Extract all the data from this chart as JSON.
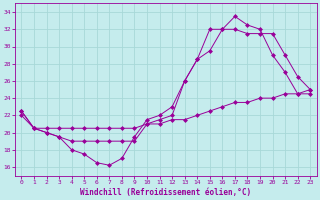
{
  "xlabel": "Windchill (Refroidissement éolien,°C)",
  "bg_color": "#c5eced",
  "line_color": "#990099",
  "grid_color": "#a8d8d8",
  "xlim": [
    -0.5,
    23.5
  ],
  "ylim": [
    15.0,
    35.0
  ],
  "yticks": [
    16,
    18,
    20,
    22,
    24,
    26,
    28,
    30,
    32,
    34
  ],
  "xticks": [
    0,
    1,
    2,
    3,
    4,
    5,
    6,
    7,
    8,
    9,
    10,
    11,
    12,
    13,
    14,
    15,
    16,
    17,
    18,
    19,
    20,
    21,
    22,
    23
  ],
  "line1_x": [
    0,
    1,
    2,
    3,
    4,
    5,
    6,
    7,
    8,
    9,
    10,
    11,
    12,
    13,
    14,
    15,
    16,
    17,
    18,
    19,
    20,
    21,
    22,
    23
  ],
  "line1_y": [
    22.5,
    20.5,
    20.0,
    19.5,
    18.0,
    17.5,
    16.5,
    16.2,
    17.0,
    19.5,
    21.5,
    22.0,
    23.0,
    26.0,
    28.5,
    29.5,
    32.0,
    33.5,
    32.5,
    32.0,
    29.0,
    27.0,
    24.5,
    24.5
  ],
  "line2_x": [
    0,
    1,
    2,
    3,
    4,
    5,
    6,
    7,
    8,
    9,
    10,
    11,
    12,
    13,
    14,
    15,
    16,
    17,
    18,
    19,
    20,
    21,
    22,
    23
  ],
  "line2_y": [
    22.5,
    20.5,
    20.0,
    19.5,
    19.0,
    19.0,
    19.0,
    19.0,
    19.0,
    19.0,
    21.0,
    21.5,
    22.0,
    26.0,
    28.5,
    32.0,
    32.0,
    32.0,
    31.5,
    31.5,
    31.5,
    29.0,
    26.5,
    25.0
  ],
  "line3_x": [
    0,
    1,
    2,
    3,
    4,
    5,
    6,
    7,
    8,
    9,
    10,
    11,
    12,
    13,
    14,
    15,
    16,
    17,
    18,
    19,
    20,
    21,
    22,
    23
  ],
  "line3_y": [
    22.0,
    20.5,
    20.5,
    20.5,
    20.5,
    20.5,
    20.5,
    20.5,
    20.5,
    20.5,
    21.0,
    21.0,
    21.5,
    21.5,
    22.0,
    22.5,
    23.0,
    23.5,
    23.5,
    24.0,
    24.0,
    24.5,
    24.5,
    25.0
  ]
}
